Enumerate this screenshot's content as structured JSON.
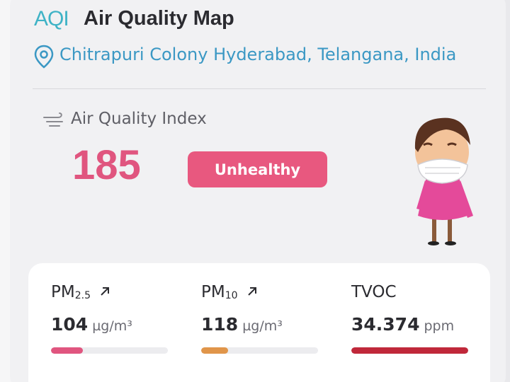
{
  "header": {
    "logo": "AQI",
    "title": "Air Quality Map",
    "location": "Chitrapuri Colony Hyderabad, Telangana, India"
  },
  "aqi": {
    "label": "Air Quality Index",
    "value": 185,
    "status": "Unhealthy"
  },
  "pollutants": [
    {
      "name": "PM",
      "subscript": "2.5",
      "value": 104,
      "unit": "µg/m³"
    },
    {
      "name": "PM",
      "subscript": "10",
      "value": 118,
      "unit": "µg/m³"
    },
    {
      "name": "TVOC",
      "value": 34.374,
      "unit": "ppm"
    }
  ]
}
